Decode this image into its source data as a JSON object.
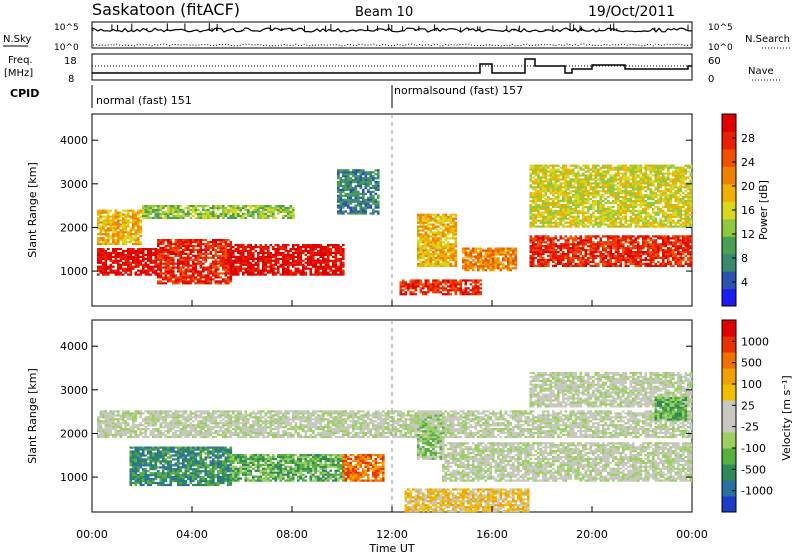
{
  "header": {
    "title": "Saskatoon (fitACF)",
    "beam": "Beam 10",
    "date": "19/Oct/2011"
  },
  "summary": {
    "nsky_label": "N.Sky",
    "nsearch_label": "N.Search",
    "freq_label_1": "Freq.",
    "freq_label_2": "[MHz]",
    "nave_label": "Nave",
    "cpid_label": "CPID",
    "noise_ticks": [
      "10^5",
      "10^0"
    ],
    "freq_ticks": [
      "18",
      "8"
    ],
    "nave_ticks": [
      "60",
      "0"
    ]
  },
  "cpid": [
    {
      "label": "normal (fast) 151",
      "start_hour": 0
    },
    {
      "label": "normalsound (fast) 157",
      "start_hour": 12
    }
  ],
  "chart_data": [
    {
      "type": "heatmap",
      "title": "",
      "xlabel": "Time UT",
      "ylabel": "Slant Range [km]",
      "xlim": [
        0,
        24
      ],
      "ylim": [
        200,
        4600
      ],
      "x_ticks": [
        "00:00",
        "04:00",
        "08:00",
        "12:00",
        "16:00",
        "20:00",
        "00:00"
      ],
      "y_ticks": [
        1000,
        2000,
        3000,
        4000
      ],
      "colorbar": {
        "label": "Power [dB]",
        "ticks": [
          "28",
          "24",
          "20",
          "16",
          "12",
          "8",
          "4"
        ],
        "colors": [
          "#1c1cf0",
          "#2a52b0",
          "#3a8870",
          "#4aa050",
          "#8ec83c",
          "#d8d820",
          "#f0b000",
          "#f08000",
          "#f05000",
          "#e82000",
          "#e00000"
        ]
      },
      "bands": [
        {
          "t0": 0.2,
          "t1": 2.6,
          "r0": 900,
          "r1": 1500,
          "level": 10
        },
        {
          "t0": 2.6,
          "t1": 5.5,
          "r0": 700,
          "r1": 1700,
          "level": 9
        },
        {
          "t0": 5.5,
          "t1": 10.0,
          "r0": 900,
          "r1": 1600,
          "level": 10
        },
        {
          "t0": 0.2,
          "t1": 2.0,
          "r0": 1600,
          "r1": 2400,
          "level": 6
        },
        {
          "t0": 2.0,
          "t1": 8.0,
          "r0": 2200,
          "r1": 2500,
          "level": 4
        },
        {
          "t0": 9.8,
          "t1": 11.4,
          "r0": 2300,
          "r1": 3300,
          "level": 2
        },
        {
          "t0": 13.0,
          "t1": 14.5,
          "r0": 1100,
          "r1": 2300,
          "level": 6
        },
        {
          "t0": 12.3,
          "t1": 15.5,
          "r0": 450,
          "r1": 800,
          "level": 9
        },
        {
          "t0": 14.8,
          "t1": 17.0,
          "r0": 1000,
          "r1": 1500,
          "level": 7
        },
        {
          "t0": 17.5,
          "t1": 24.0,
          "r0": 1100,
          "r1": 1800,
          "level": 9
        },
        {
          "t0": 17.5,
          "t1": 24.0,
          "r0": 2000,
          "r1": 3400,
          "level": 5
        }
      ]
    },
    {
      "type": "heatmap",
      "title": "",
      "xlabel": "Time UT",
      "ylabel": "Slant Range [km]",
      "xlim": [
        0,
        24
      ],
      "ylim": [
        200,
        4600
      ],
      "x_ticks": [
        "00:00",
        "04:00",
        "08:00",
        "12:00",
        "16:00",
        "20:00",
        "00:00"
      ],
      "y_ticks": [
        1000,
        2000,
        3000,
        4000
      ],
      "colorbar": {
        "label": "Velocity [m s⁻¹]",
        "ticks": [
          "1000",
          "500",
          "100",
          "25",
          "-25",
          "-100",
          "-500",
          "-1000"
        ],
        "colors": [
          "#1c3cc8",
          "#2a70a0",
          "#2e8a58",
          "#58b040",
          "#9ad060",
          "#c8c8c0",
          "#c8c8c0",
          "#f0c000",
          "#f0a000",
          "#f07000",
          "#e83000",
          "#e00000"
        ]
      },
      "bands": [
        {
          "t0": 1.5,
          "t1": 5.5,
          "r0": 800,
          "r1": 1700,
          "level": 2
        },
        {
          "t0": 5.5,
          "t1": 10.0,
          "r0": 900,
          "r1": 1500,
          "level": 3
        },
        {
          "t0": 10.0,
          "t1": 11.6,
          "r0": 900,
          "r1": 1500,
          "level": 9
        },
        {
          "t0": 0.2,
          "t1": 24.0,
          "r0": 1900,
          "r1": 2500,
          "level": 5
        },
        {
          "t0": 12.5,
          "t1": 17.5,
          "r0": 200,
          "r1": 700,
          "level": 7
        },
        {
          "t0": 13.0,
          "t1": 14.0,
          "r0": 1400,
          "r1": 2400,
          "level": 4
        },
        {
          "t0": 14.0,
          "t1": 24.0,
          "r0": 900,
          "r1": 1800,
          "level": 5
        },
        {
          "t0": 17.5,
          "t1": 24.0,
          "r0": 2600,
          "r1": 3400,
          "level": 5
        },
        {
          "t0": 22.5,
          "t1": 23.8,
          "r0": 2300,
          "r1": 2800,
          "level": 3
        }
      ]
    }
  ]
}
